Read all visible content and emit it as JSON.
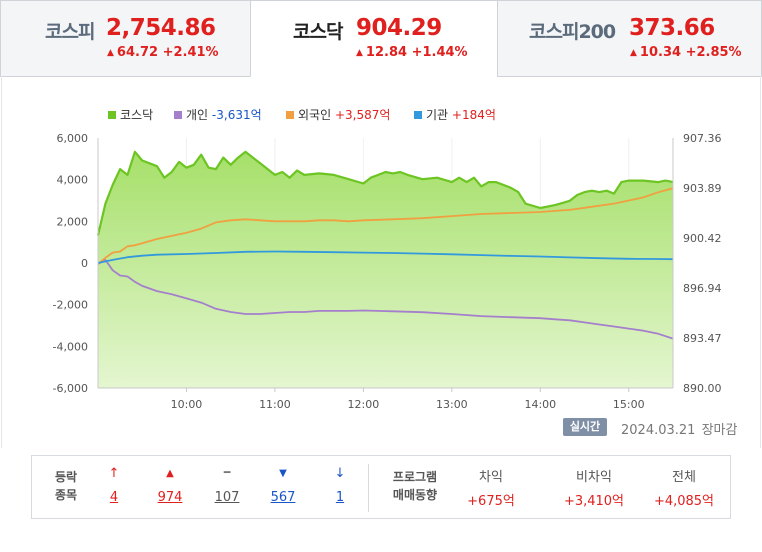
{
  "tabs": [
    {
      "name": "코스피",
      "value": "2,754.86",
      "change": "64.72 +2.41%",
      "active": false
    },
    {
      "name": "코스닥",
      "value": "904.29",
      "change": "12.84 +1.44%",
      "active": true
    },
    {
      "name": "코스피200",
      "value": "373.66",
      "change": "10.34 +2.85%",
      "active": false
    }
  ],
  "colors": {
    "up": "#e0201e",
    "down": "#1a55c8",
    "kosdaq": "#6cc522",
    "individual": "#a57fcc",
    "foreign": "#f0a040",
    "institution": "#3399dd"
  },
  "chart_data": {
    "type": "area",
    "legend": [
      {
        "name": "코스닥",
        "value": "",
        "color": "#6cc522"
      },
      {
        "name": "개인",
        "value": "-3,631억",
        "color": "#a57fcc"
      },
      {
        "name": "외국인",
        "value": "+3,587억",
        "color": "#f0a040"
      },
      {
        "name": "기관",
        "value": "+184억",
        "color": "#3399dd"
      }
    ],
    "x_ticks": [
      "10:00",
      "11:00",
      "12:00",
      "13:00",
      "14:00",
      "15:00"
    ],
    "y_left_ticks": [
      "6,000",
      "4,000",
      "2,000",
      "0",
      "-2,000",
      "-4,000",
      "-6,000"
    ],
    "y_right_ticks": [
      "907.36",
      "903.89",
      "900.42",
      "896.94",
      "893.47",
      "890.00"
    ],
    "ylim_left": [
      -6000,
      6000
    ],
    "ylim_right": [
      890.0,
      907.36
    ],
    "xlim": [
      "09:00",
      "15:30"
    ],
    "reference_line": -4950,
    "kosdaq": {
      "x": [
        "09:00",
        "09:05",
        "09:10",
        "09:15",
        "09:20",
        "09:25",
        "09:30",
        "09:35",
        "09:40",
        "09:45",
        "09:50",
        "09:55",
        "10:00",
        "10:05",
        "10:10",
        "10:15",
        "10:20",
        "10:25",
        "10:30",
        "10:35",
        "10:40",
        "10:50",
        "11:00",
        "11:05",
        "11:10",
        "11:15",
        "11:20",
        "11:30",
        "11:40",
        "11:50",
        "12:00",
        "12:05",
        "12:10",
        "12:15",
        "12:20",
        "12:25",
        "12:30",
        "12:40",
        "12:50",
        "13:00",
        "13:05",
        "13:10",
        "13:15",
        "13:20",
        "13:25",
        "13:30",
        "13:40",
        "13:45",
        "13:50",
        "14:00",
        "14:10",
        "14:20",
        "14:25",
        "14:30",
        "14:35",
        "14:40",
        "14:45",
        "14:50",
        "14:55",
        "15:00",
        "15:10",
        "15:20",
        "15:25",
        "15:30"
      ],
      "y": [
        900.6,
        902.8,
        904.1,
        905.2,
        904.8,
        906.4,
        905.8,
        905.6,
        905.4,
        904.6,
        905.0,
        905.7,
        905.3,
        905.5,
        906.2,
        905.3,
        905.2,
        906.0,
        905.5,
        906.0,
        906.4,
        905.6,
        904.8,
        905.0,
        904.6,
        905.1,
        904.8,
        904.9,
        904.8,
        904.5,
        904.2,
        904.6,
        904.8,
        905.0,
        904.9,
        905.0,
        904.8,
        904.5,
        904.6,
        904.3,
        904.6,
        904.3,
        904.6,
        904.0,
        904.3,
        904.3,
        903.9,
        903.6,
        902.8,
        902.5,
        902.7,
        903.0,
        903.4,
        903.6,
        903.7,
        903.6,
        903.7,
        903.5,
        904.3,
        904.4,
        904.4,
        904.3,
        904.4,
        904.3
      ]
    },
    "series": [
      {
        "name": "개인",
        "x": [
          "09:00",
          "09:05",
          "09:10",
          "09:15",
          "09:20",
          "09:25",
          "09:30",
          "09:40",
          "09:50",
          "10:00",
          "10:10",
          "10:20",
          "10:30",
          "10:40",
          "10:50",
          "11:00",
          "11:10",
          "11:20",
          "11:30",
          "11:40",
          "11:50",
          "12:00",
          "12:20",
          "12:40",
          "13:00",
          "13:20",
          "13:40",
          "14:00",
          "14:10",
          "14:20",
          "14:30",
          "14:40",
          "14:50",
          "15:00",
          "15:10",
          "15:20",
          "15:30"
        ],
        "y": [
          -50,
          150,
          -350,
          -600,
          -650,
          -900,
          -1100,
          -1350,
          -1500,
          -1700,
          -1900,
          -2200,
          -2350,
          -2450,
          -2450,
          -2400,
          -2350,
          -2350,
          -2300,
          -2300,
          -2300,
          -2280,
          -2320,
          -2360,
          -2450,
          -2550,
          -2600,
          -2650,
          -2700,
          -2750,
          -2850,
          -2950,
          -3050,
          -3150,
          -3250,
          -3400,
          -3631
        ]
      },
      {
        "name": "외국인",
        "x": [
          "09:00",
          "09:05",
          "09:10",
          "09:15",
          "09:20",
          "09:25",
          "09:30",
          "09:40",
          "09:50",
          "10:00",
          "10:10",
          "10:20",
          "10:30",
          "10:40",
          "10:50",
          "11:00",
          "11:10",
          "11:20",
          "11:30",
          "11:40",
          "11:50",
          "12:00",
          "12:20",
          "12:40",
          "13:00",
          "13:20",
          "13:40",
          "14:00",
          "14:10",
          "14:20",
          "14:30",
          "14:40",
          "14:50",
          "15:00",
          "15:10",
          "15:20",
          "15:30"
        ],
        "y": [
          -50,
          250,
          500,
          550,
          800,
          850,
          950,
          1150,
          1300,
          1450,
          1650,
          1950,
          2050,
          2100,
          2050,
          2000,
          2000,
          2000,
          2050,
          2050,
          2000,
          2050,
          2100,
          2150,
          2250,
          2350,
          2400,
          2450,
          2500,
          2550,
          2650,
          2750,
          2850,
          3000,
          3150,
          3400,
          3587
        ]
      },
      {
        "name": "기관",
        "x": [
          "09:00",
          "09:10",
          "09:20",
          "09:30",
          "09:40",
          "10:00",
          "10:20",
          "10:40",
          "11:00",
          "11:20",
          "11:40",
          "12:00",
          "12:20",
          "12:40",
          "13:00",
          "13:20",
          "13:40",
          "14:00",
          "14:20",
          "14:40",
          "15:00",
          "15:20",
          "15:30"
        ],
        "y": [
          0,
          150,
          280,
          350,
          400,
          430,
          480,
          540,
          550,
          540,
          520,
          500,
          480,
          450,
          420,
          380,
          340,
          310,
          270,
          230,
          200,
          190,
          184
        ]
      }
    ]
  },
  "footer": {
    "badge": "실시간",
    "date": "2024.03.21",
    "status": "장마감"
  },
  "stats": {
    "label_line1": "등락",
    "label_line2": "종목",
    "items": [
      {
        "icon": "↑",
        "count": "4",
        "kind": "upper-limit",
        "color": "#e0201e"
      },
      {
        "icon": "▲",
        "count": "974",
        "kind": "rise",
        "color": "#e0201e"
      },
      {
        "icon": "━",
        "count": "107",
        "kind": "unchanged",
        "color": "#777777"
      },
      {
        "icon": "▼",
        "count": "567",
        "kind": "fall",
        "color": "#1a55c8"
      },
      {
        "icon": "↓",
        "count": "1",
        "kind": "lower-limit",
        "color": "#1a55c8"
      }
    ],
    "program_line1": "프로그램",
    "program_line2": "매매동향",
    "program": [
      {
        "header": "차익",
        "value": "+675억"
      },
      {
        "header": "비차익",
        "value": "+3,410억"
      },
      {
        "header": "전체",
        "value": "+4,085억"
      }
    ]
  }
}
